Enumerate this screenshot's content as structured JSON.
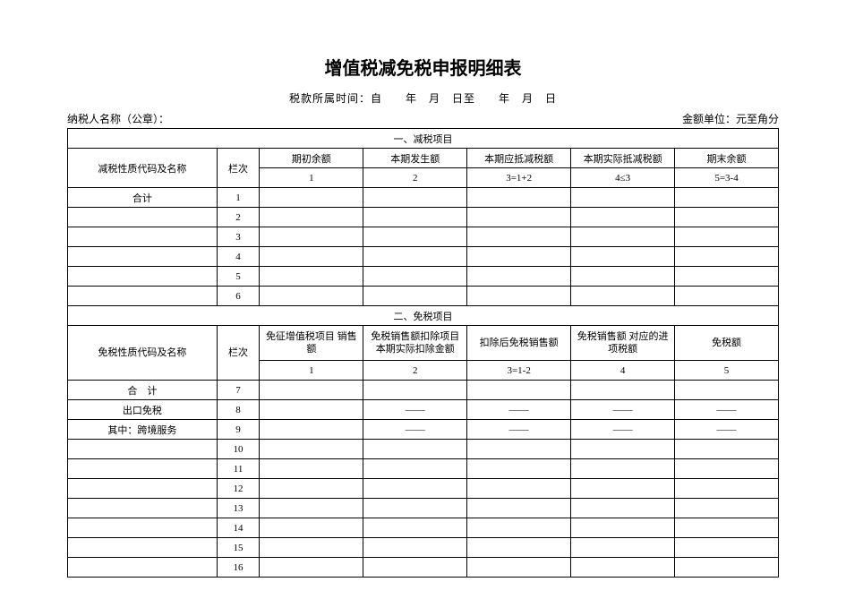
{
  "title": "增值税减免税申报明细表",
  "subtitle": "税款所属时间：自　　年　月　日至　　年　月　日",
  "meta": {
    "left": "纳税人名称（公章）：",
    "right": "金额单位：元至角分"
  },
  "section1": {
    "header": "一、减税项目",
    "col_name": "减税性质代码及名称",
    "col_lan": "栏次",
    "cols": [
      "期初余额",
      "本期发生额",
      "本期应抵减税额",
      "本期实际抵减税额",
      "期末余额"
    ],
    "formulas": [
      "1",
      "2",
      "3=1+2",
      "4≤3",
      "5=3-4"
    ],
    "rows": [
      {
        "name": "合计",
        "n": "1"
      },
      {
        "name": "",
        "n": "2"
      },
      {
        "name": "",
        "n": "3"
      },
      {
        "name": "",
        "n": "4"
      },
      {
        "name": "",
        "n": "5"
      },
      {
        "name": "",
        "n": "6"
      }
    ]
  },
  "section2": {
    "header": "二、免税项目",
    "col_name": "免税性质代码及名称",
    "col_lan": "栏次",
    "cols": [
      "免征增值税项目\n销售额",
      "免税销售额扣除项目\n本期实际扣除金额",
      "扣除后免税销售额",
      "免税销售额\n对应的进项税额",
      "免税额"
    ],
    "formulas": [
      "1",
      "2",
      "3=1-2",
      "4",
      "5"
    ],
    "rows": [
      {
        "name": "合　计",
        "n": "7",
        "c": [
          "",
          "",
          "",
          "",
          ""
        ]
      },
      {
        "name": "出口免税",
        "n": "8",
        "c": [
          "",
          "——",
          "——",
          "——",
          "——"
        ]
      },
      {
        "name": "其中：跨境服务",
        "n": "9",
        "c": [
          "",
          "——",
          "——",
          "——",
          "——"
        ]
      },
      {
        "name": "",
        "n": "10",
        "c": [
          "",
          "",
          "",
          "",
          ""
        ]
      },
      {
        "name": "",
        "n": "11",
        "c": [
          "",
          "",
          "",
          "",
          ""
        ]
      },
      {
        "name": "",
        "n": "12",
        "c": [
          "",
          "",
          "",
          "",
          ""
        ]
      },
      {
        "name": "",
        "n": "13",
        "c": [
          "",
          "",
          "",
          "",
          ""
        ]
      },
      {
        "name": "",
        "n": "14",
        "c": [
          "",
          "",
          "",
          "",
          ""
        ]
      },
      {
        "name": "",
        "n": "15",
        "c": [
          "",
          "",
          "",
          "",
          ""
        ]
      },
      {
        "name": "",
        "n": "16",
        "c": [
          "",
          "",
          "",
          "",
          ""
        ]
      }
    ]
  }
}
